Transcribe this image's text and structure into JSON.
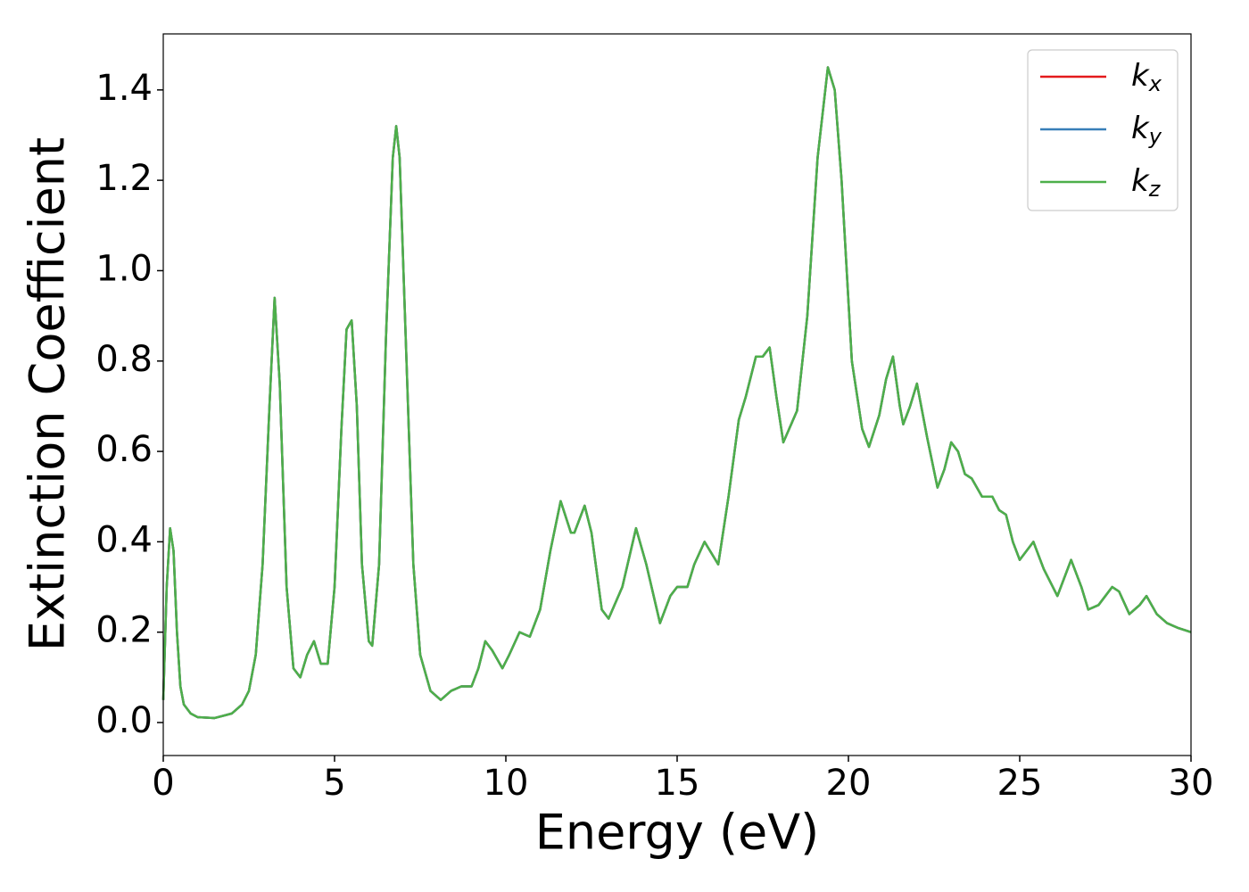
{
  "chart_data": {
    "type": "line",
    "x_label": "Energy (eV)",
    "y_label": "Extinction Coefficient",
    "xlim": [
      0,
      30
    ],
    "ylim": [
      -0.073,
      1.524
    ],
    "xticks": [
      0,
      5,
      10,
      15,
      20,
      25,
      30
    ],
    "yticks": [
      {
        "value": 0,
        "label": "0.0"
      },
      {
        "value": 0.2,
        "label": "0.2"
      },
      {
        "value": 0.4,
        "label": "0.4"
      },
      {
        "value": 0.6,
        "label": "0.6"
      },
      {
        "value": 0.8,
        "label": "0.8"
      },
      {
        "value": 1.0,
        "label": "1.0"
      },
      {
        "value": 1.2,
        "label": "1.2"
      },
      {
        "value": 1.4,
        "label": "1.4"
      }
    ],
    "legend": "upper right",
    "x": [
      0,
      0.1,
      0.2,
      0.3,
      0.4,
      0.5,
      0.6,
      0.8,
      1.0,
      1.5,
      2.0,
      2.3,
      2.5,
      2.7,
      2.9,
      3.1,
      3.25,
      3.4,
      3.6,
      3.8,
      4.0,
      4.2,
      4.4,
      4.6,
      4.8,
      5.0,
      5.2,
      5.35,
      5.5,
      5.65,
      5.8,
      6.0,
      6.1,
      6.3,
      6.5,
      6.7,
      6.8,
      6.9,
      7.1,
      7.3,
      7.5,
      7.8,
      8.1,
      8.4,
      8.7,
      9.0,
      9.2,
      9.4,
      9.6,
      9.9,
      10.1,
      10.4,
      10.7,
      11.0,
      11.3,
      11.6,
      11.9,
      12.0,
      12.3,
      12.5,
      12.8,
      13.0,
      13.4,
      13.8,
      14.1,
      14.5,
      14.8,
      15.0,
      15.3,
      15.5,
      15.8,
      16.2,
      16.5,
      16.8,
      17.0,
      17.3,
      17.5,
      17.7,
      17.9,
      18.1,
      18.5,
      18.8,
      19.1,
      19.4,
      19.6,
      19.8,
      20.1,
      20.4,
      20.6,
      20.9,
      21.1,
      21.3,
      21.5,
      21.6,
      21.8,
      22.0,
      22.3,
      22.6,
      22.8,
      23.0,
      23.2,
      23.4,
      23.6,
      23.9,
      24.2,
      24.4,
      24.6,
      24.8,
      25.0,
      25.4,
      25.7,
      26.1,
      26.5,
      26.8,
      27.0,
      27.3,
      27.7,
      27.9,
      28.2,
      28.5,
      28.7,
      29.0,
      29.3,
      29.6,
      30.0
    ],
    "series": [
      {
        "name": "kx",
        "color": "#e41a1c",
        "values": [
          0.05,
          0.3,
          0.43,
          0.38,
          0.2,
          0.08,
          0.04,
          0.02,
          0.012,
          0.01,
          0.02,
          0.04,
          0.07,
          0.15,
          0.35,
          0.7,
          0.94,
          0.75,
          0.3,
          0.12,
          0.1,
          0.15,
          0.18,
          0.13,
          0.13,
          0.3,
          0.65,
          0.87,
          0.89,
          0.7,
          0.35,
          0.18,
          0.17,
          0.35,
          0.85,
          1.25,
          1.32,
          1.25,
          0.8,
          0.35,
          0.15,
          0.07,
          0.05,
          0.07,
          0.08,
          0.08,
          0.12,
          0.18,
          0.16,
          0.12,
          0.15,
          0.2,
          0.19,
          0.25,
          0.38,
          0.49,
          0.42,
          0.42,
          0.48,
          0.42,
          0.25,
          0.23,
          0.3,
          0.43,
          0.35,
          0.22,
          0.28,
          0.3,
          0.3,
          0.35,
          0.4,
          0.35,
          0.5,
          0.67,
          0.72,
          0.81,
          0.81,
          0.83,
          0.72,
          0.62,
          0.69,
          0.9,
          1.25,
          1.45,
          1.4,
          1.2,
          0.8,
          0.65,
          0.61,
          0.68,
          0.76,
          0.81,
          0.7,
          0.66,
          0.7,
          0.75,
          0.63,
          0.52,
          0.56,
          0.62,
          0.6,
          0.55,
          0.54,
          0.5,
          0.5,
          0.47,
          0.46,
          0.4,
          0.36,
          0.4,
          0.34,
          0.28,
          0.36,
          0.3,
          0.25,
          0.26,
          0.3,
          0.29,
          0.24,
          0.26,
          0.28,
          0.24,
          0.22,
          0.21,
          0.2
        ]
      },
      {
        "name": "ky",
        "color": "#377eb8",
        "values": [
          0.05,
          0.3,
          0.43,
          0.38,
          0.2,
          0.08,
          0.04,
          0.02,
          0.012,
          0.01,
          0.02,
          0.04,
          0.07,
          0.15,
          0.35,
          0.7,
          0.94,
          0.75,
          0.3,
          0.12,
          0.1,
          0.15,
          0.18,
          0.13,
          0.13,
          0.3,
          0.65,
          0.87,
          0.89,
          0.7,
          0.35,
          0.18,
          0.17,
          0.35,
          0.85,
          1.25,
          1.32,
          1.25,
          0.8,
          0.35,
          0.15,
          0.07,
          0.05,
          0.07,
          0.08,
          0.08,
          0.12,
          0.18,
          0.16,
          0.12,
          0.15,
          0.2,
          0.19,
          0.25,
          0.38,
          0.49,
          0.42,
          0.42,
          0.48,
          0.42,
          0.25,
          0.23,
          0.3,
          0.43,
          0.35,
          0.22,
          0.28,
          0.3,
          0.3,
          0.35,
          0.4,
          0.35,
          0.5,
          0.67,
          0.72,
          0.81,
          0.81,
          0.83,
          0.72,
          0.62,
          0.69,
          0.9,
          1.25,
          1.45,
          1.4,
          1.2,
          0.8,
          0.65,
          0.61,
          0.68,
          0.76,
          0.81,
          0.7,
          0.66,
          0.7,
          0.75,
          0.63,
          0.52,
          0.56,
          0.62,
          0.6,
          0.55,
          0.54,
          0.5,
          0.5,
          0.47,
          0.46,
          0.4,
          0.36,
          0.4,
          0.34,
          0.28,
          0.36,
          0.3,
          0.25,
          0.26,
          0.3,
          0.29,
          0.24,
          0.26,
          0.28,
          0.24,
          0.22,
          0.21,
          0.2
        ]
      },
      {
        "name": "kz",
        "color": "#4daf4a",
        "values": [
          0.05,
          0.3,
          0.43,
          0.38,
          0.2,
          0.08,
          0.04,
          0.02,
          0.012,
          0.01,
          0.02,
          0.04,
          0.07,
          0.15,
          0.35,
          0.7,
          0.94,
          0.75,
          0.3,
          0.12,
          0.1,
          0.15,
          0.18,
          0.13,
          0.13,
          0.3,
          0.65,
          0.87,
          0.89,
          0.7,
          0.35,
          0.18,
          0.17,
          0.35,
          0.85,
          1.25,
          1.32,
          1.25,
          0.8,
          0.35,
          0.15,
          0.07,
          0.05,
          0.07,
          0.08,
          0.08,
          0.12,
          0.18,
          0.16,
          0.12,
          0.15,
          0.2,
          0.19,
          0.25,
          0.38,
          0.49,
          0.42,
          0.42,
          0.48,
          0.42,
          0.25,
          0.23,
          0.3,
          0.43,
          0.35,
          0.22,
          0.28,
          0.3,
          0.3,
          0.35,
          0.4,
          0.35,
          0.5,
          0.67,
          0.72,
          0.81,
          0.81,
          0.83,
          0.72,
          0.62,
          0.69,
          0.9,
          1.25,
          1.45,
          1.4,
          1.2,
          0.8,
          0.65,
          0.61,
          0.68,
          0.76,
          0.81,
          0.7,
          0.66,
          0.7,
          0.75,
          0.63,
          0.52,
          0.56,
          0.62,
          0.6,
          0.55,
          0.54,
          0.5,
          0.5,
          0.47,
          0.46,
          0.4,
          0.36,
          0.4,
          0.34,
          0.28,
          0.36,
          0.3,
          0.25,
          0.26,
          0.3,
          0.29,
          0.24,
          0.26,
          0.28,
          0.24,
          0.22,
          0.21,
          0.2
        ]
      }
    ]
  }
}
